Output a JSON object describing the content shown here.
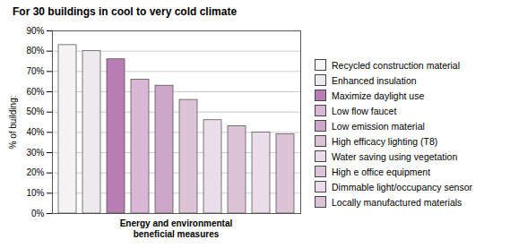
{
  "chart_data": {
    "type": "bar",
    "title": "For 30 buildings in cool to very cold climate",
    "xlabel": "Energy and environmental\nbeneficial measures",
    "ylabel": "% of building:",
    "categories": [
      "Recycled construction material",
      "Enhanced insulation",
      "Maximize daylight use",
      "Low flow faucet",
      "Low emission material",
      "High efficacy lighting (T8)",
      "Water saving using vegetation",
      "High e office equipment",
      "Dimmable light/occupancy sensor",
      "Locally manufactured materials"
    ],
    "values": [
      83,
      80,
      76,
      66,
      63,
      56,
      46,
      43,
      40,
      39
    ],
    "colors": [
      "#f5f3f3",
      "#ede9ed",
      "#b87db2",
      "#d8b8d4",
      "#cca8c8",
      "#dcc4d8",
      "#eadce8",
      "#dcc4d8",
      "#eadce8",
      "#dcc4d8"
    ],
    "ylim": [
      0,
      90
    ],
    "yticks": [
      {
        "value": 0,
        "label": "0%"
      },
      {
        "value": 10,
        "label": "10%"
      },
      {
        "value": 20,
        "label": "20%"
      },
      {
        "value": 30,
        "label": "30%"
      },
      {
        "value": 40,
        "label": "40%"
      },
      {
        "value": 50,
        "label": "50%"
      },
      {
        "value": 60,
        "label": "60%"
      },
      {
        "value": 70,
        "label": "70%"
      },
      {
        "value": 80,
        "label": "80%"
      },
      {
        "value": 90,
        "label": "90%"
      }
    ],
    "grid": true,
    "legend": "right",
    "tick_labels": "y"
  }
}
